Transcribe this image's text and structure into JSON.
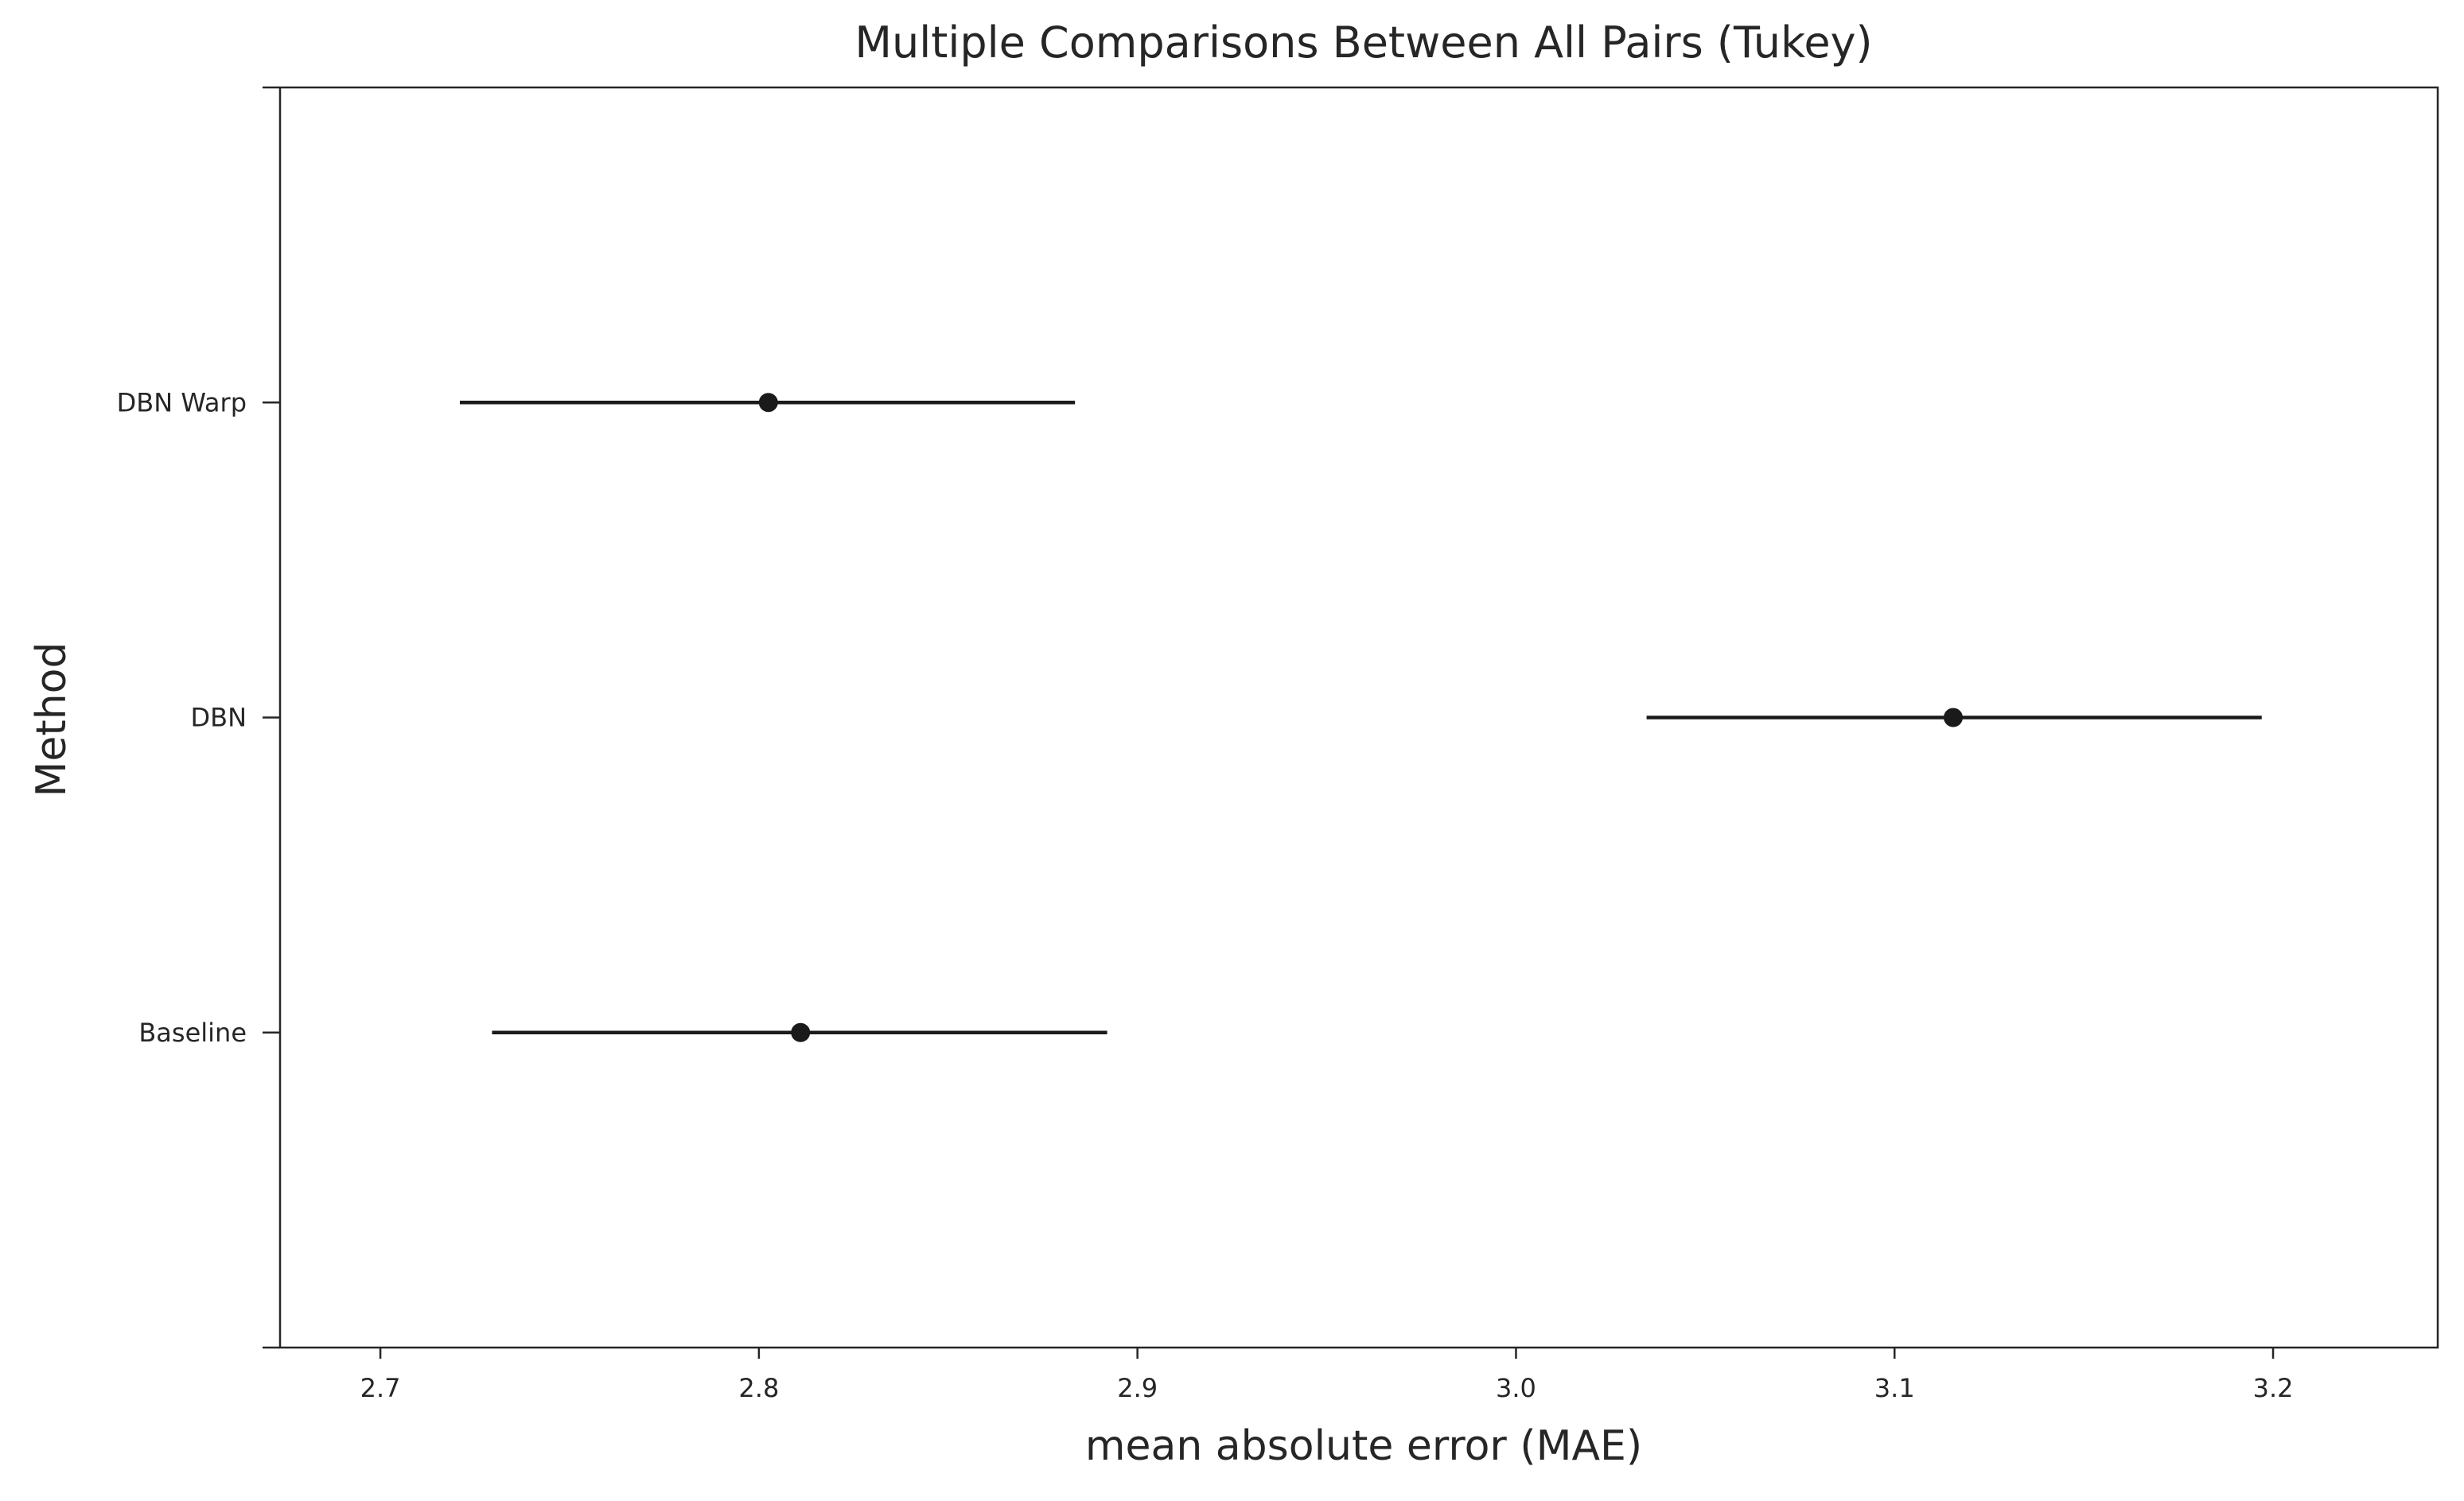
{
  "chart_data": {
    "type": "errorbar",
    "title": "Multiple Comparisons Between All Pairs (Tukey)",
    "xlabel": "mean absolute error (MAE)",
    "ylabel": "Method",
    "xlim": [
      2.6735,
      3.2435
    ],
    "x_ticks": [
      "2.7",
      "2.8",
      "2.9",
      "3.0",
      "3.1",
      "3.2"
    ],
    "x_tick_values": [
      2.7,
      2.8,
      2.9,
      3.0,
      3.1,
      3.2
    ],
    "categories": [
      "DBN Warp",
      "DBN",
      "Baseline"
    ],
    "series": [
      {
        "points": [
          {
            "category": "DBN Warp",
            "mean": 2.8025,
            "lower": 2.721,
            "upper": 2.8835
          },
          {
            "category": "DBN",
            "mean": 3.1155,
            "lower": 3.0345,
            "upper": 3.197
          },
          {
            "category": "Baseline",
            "mean": 2.811,
            "lower": 2.7295,
            "upper": 2.892
          }
        ]
      }
    ],
    "grid": false,
    "legend": "none",
    "colors": {
      "marker": "#1a1a1a",
      "axes": "#262626",
      "background": "#ffffff"
    }
  }
}
